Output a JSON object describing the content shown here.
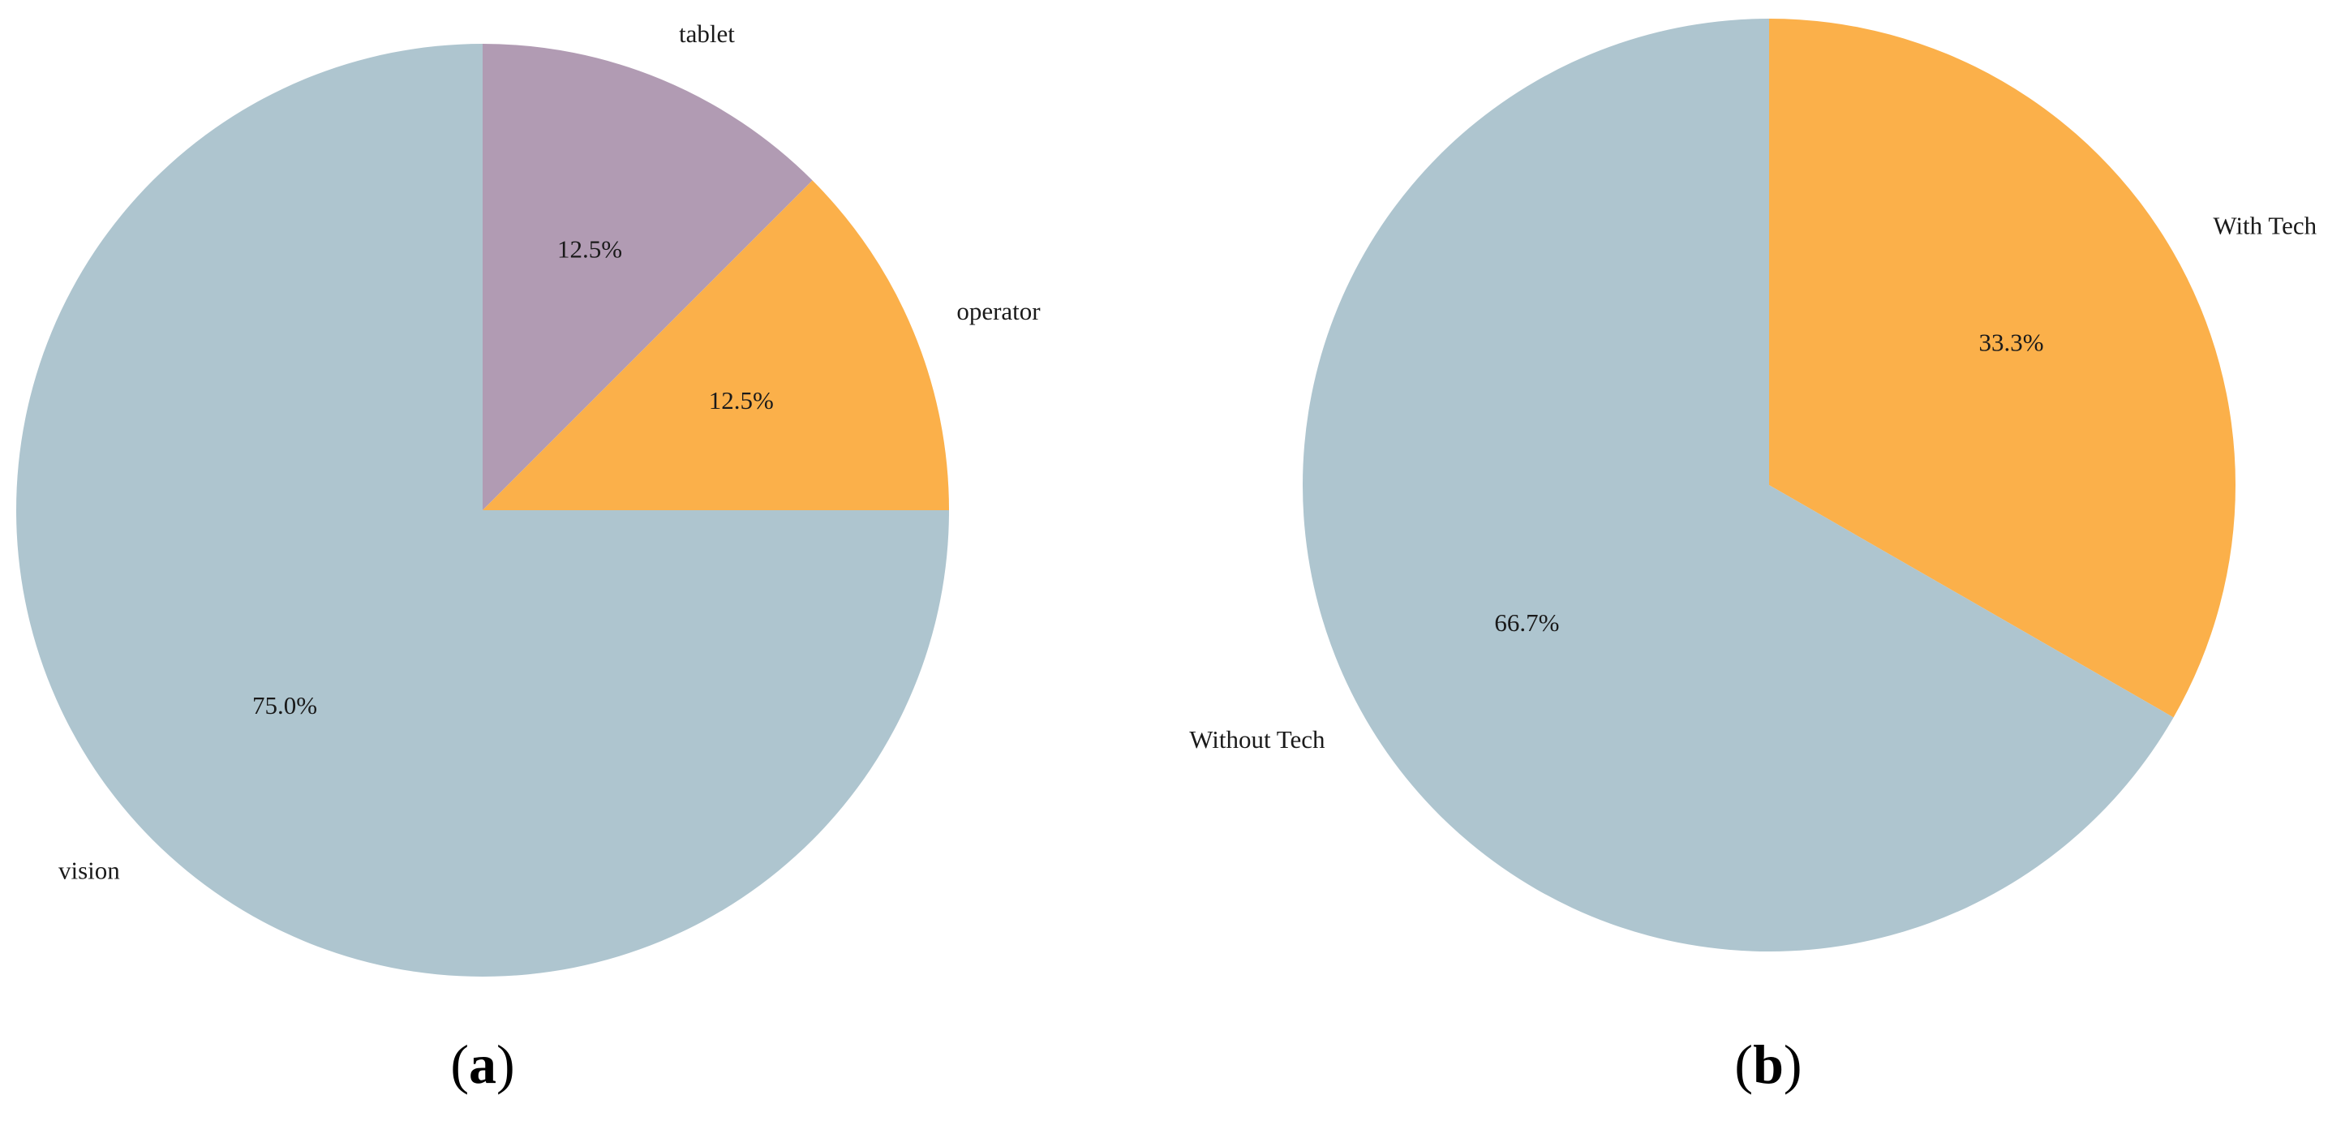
{
  "chart_data": [
    {
      "type": "pie",
      "panel_label": "a",
      "start_angle_deg": 90,
      "direction": "clockwise",
      "slices": [
        {
          "label": "tablet",
          "value": 12.5,
          "pct_label": "12.5%",
          "color": "#B19BB3"
        },
        {
          "label": "operator",
          "value": 12.5,
          "pct_label": "12.5%",
          "color": "#FBB04A"
        },
        {
          "label": "vision",
          "value": 75.0,
          "pct_label": "75.0%",
          "color": "#AEC5CF"
        }
      ]
    },
    {
      "type": "pie",
      "panel_label": "b",
      "start_angle_deg": 90,
      "direction": "clockwise",
      "slices": [
        {
          "label": "With Tech",
          "value": 33.3,
          "pct_label": "33.3%",
          "color": "#FBB04A"
        },
        {
          "label": "Without Tech",
          "value": 66.7,
          "pct_label": "66.7%",
          "color": "#AEC5CF"
        }
      ]
    }
  ]
}
